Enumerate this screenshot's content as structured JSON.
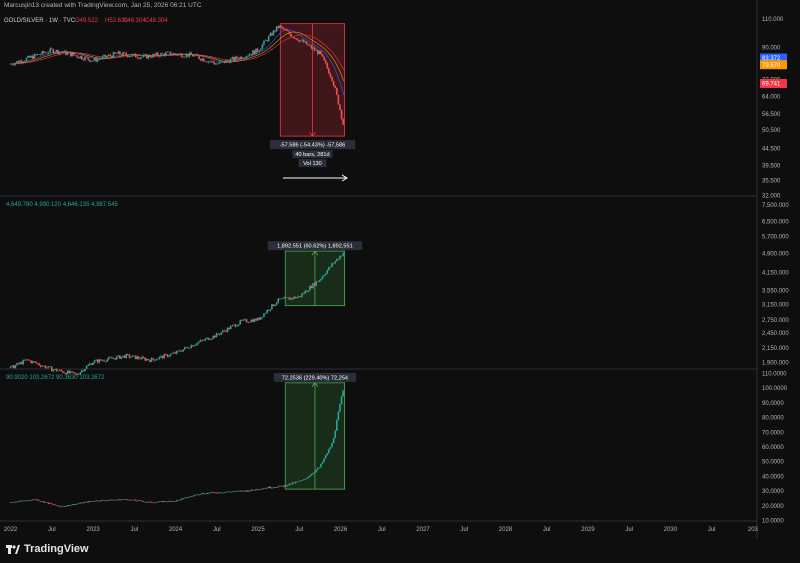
{
  "header": {
    "credit": "Marcusjin13 created with TradingView.com, Jan 25, 2026 06:21 UTC"
  },
  "footer": {
    "brand": "TradingView",
    "logo_icon": "tradingview-logo-icon"
  },
  "colors": {
    "up": "#26a69a",
    "down": "#ef5350",
    "green": "#4caf50",
    "red": "#f23645",
    "blue": "#2962ff",
    "orange": "#ff9800"
  },
  "chart_data": [
    {
      "type": "line",
      "series_label": "GOLD/SILVER · 1W · TVC",
      "ohlc_label": {
        "o": "O49.522",
        "h": "H52.633",
        "l": "L48.304",
        "c": "C48.304"
      },
      "y_ticks": [
        "110.000",
        "90.000",
        "72.000",
        "64.000",
        "56.500",
        "50.500",
        "44.500",
        "39.500",
        "35.500",
        "32.000"
      ],
      "y_tick_values": [
        110,
        90,
        72,
        64,
        56.5,
        50.5,
        44.5,
        39.5,
        35.5,
        32
      ],
      "ylim": [
        32,
        115
      ],
      "price_tags": [
        {
          "text": "83.372",
          "color": "#2962ff",
          "value": 83.372
        },
        {
          "text": "79.570",
          "color": "#ff9800",
          "value": 79.57
        },
        {
          "text": "69.741",
          "color": "#f23645",
          "value": 69.741
        }
      ],
      "anchors": [
        [
          2022.0,
          80
        ],
        [
          2022.2,
          83
        ],
        [
          2022.5,
          88
        ],
        [
          2022.7,
          86
        ],
        [
          2023.0,
          82
        ],
        [
          2023.3,
          86
        ],
        [
          2023.6,
          84
        ],
        [
          2023.9,
          86
        ],
        [
          2024.2,
          85
        ],
        [
          2024.5,
          80
        ],
        [
          2024.8,
          84
        ],
        [
          2025.0,
          88
        ],
        [
          2025.25,
          104
        ],
        [
          2025.4,
          98
        ],
        [
          2025.55,
          93
        ],
        [
          2025.75,
          86
        ],
        [
          2025.9,
          72
        ],
        [
          2026.05,
          50
        ]
      ],
      "measure": {
        "from": 106,
        "to": 48.3,
        "x_from": 2025.27,
        "x_to": 2026.05,
        "label": "-57.586 (-54.43%) -57,586",
        "bars": "40 bars, 281d",
        "vol": "Vol 130"
      }
    },
    {
      "type": "line",
      "ohlc_label": "4,649.780  4,990.120  4,646.135  4,987.545",
      "y_ticks": [
        "7,500.000",
        "6,500.000",
        "5,700.000",
        "4,900.000",
        "4,150.000",
        "3,550.000",
        "3,150.000",
        "2,750.000",
        "2,450.000",
        "2,150.000",
        "1,900.000"
      ],
      "y_tick_values": [
        7500,
        6500,
        5700,
        4900,
        4150,
        3550,
        3150,
        2750,
        2450,
        2150,
        1900
      ],
      "ylim": [
        1800,
        8000
      ],
      "anchors": [
        [
          2022.0,
          1800
        ],
        [
          2022.2,
          1930
        ],
        [
          2022.5,
          1780
        ],
        [
          2022.8,
          1700
        ],
        [
          2023.0,
          1900
        ],
        [
          2023.4,
          2000
        ],
        [
          2023.7,
          1930
        ],
        [
          2024.0,
          2050
        ],
        [
          2024.2,
          2200
        ],
        [
          2024.5,
          2400
        ],
        [
          2024.8,
          2700
        ],
        [
          2025.0,
          2750
        ],
        [
          2025.25,
          3250
        ],
        [
          2025.5,
          3350
        ],
        [
          2025.75,
          3900
        ],
        [
          2026.05,
          4987
        ]
      ],
      "measure": {
        "from": 3100,
        "to": 4990,
        "x_from": 2025.33,
        "x_to": 2026.05,
        "label": "1,892.551 (60.62%) 1,892,551"
      }
    },
    {
      "type": "line",
      "ohlc_label": "90.9020  103.2672  90.3630  103.2672",
      "y_ticks": [
        "110.0000",
        "100.0000",
        "90.0000",
        "80.0000",
        "70.0000",
        "60.0000",
        "50.0000",
        "40.0000",
        "30.0000",
        "20.0000",
        "10.0000"
      ],
      "y_tick_values": [
        110,
        100,
        90,
        80,
        70,
        60,
        50,
        40,
        30,
        20,
        10
      ],
      "ylim": [
        10,
        112
      ],
      "anchors": [
        [
          2022.0,
          22
        ],
        [
          2022.3,
          24
        ],
        [
          2022.6,
          19
        ],
        [
          2022.8,
          21
        ],
        [
          2023.0,
          23
        ],
        [
          2023.4,
          24
        ],
        [
          2023.7,
          22
        ],
        [
          2024.0,
          23
        ],
        [
          2024.3,
          28
        ],
        [
          2024.6,
          29
        ],
        [
          2024.9,
          30
        ],
        [
          2025.1,
          32
        ],
        [
          2025.3,
          33
        ],
        [
          2025.55,
          37
        ],
        [
          2025.75,
          46
        ],
        [
          2025.9,
          62
        ],
        [
          2026.05,
          103
        ]
      ],
      "measure": {
        "from": 31,
        "to": 103.27,
        "x_from": 2025.33,
        "x_to": 2026.05,
        "label": "72.2536 (229.40%) 72,254"
      }
    }
  ],
  "x_axis": {
    "labels": [
      "2022",
      "Jul",
      "2023",
      "Jul",
      "2024",
      "Jul",
      "2025",
      "Jul",
      "2026",
      "Jul",
      "2027",
      "Jul",
      "2028",
      "Jul",
      "2029",
      "Jul",
      "2030",
      "Jul",
      "203"
    ],
    "values": [
      2022,
      2022.5,
      2023,
      2023.5,
      2024,
      2024.5,
      2025,
      2025.5,
      2026,
      2026.5,
      2027,
      2027.5,
      2028,
      2028.5,
      2029,
      2029.5,
      2030,
      2030.5,
      2031
    ]
  }
}
